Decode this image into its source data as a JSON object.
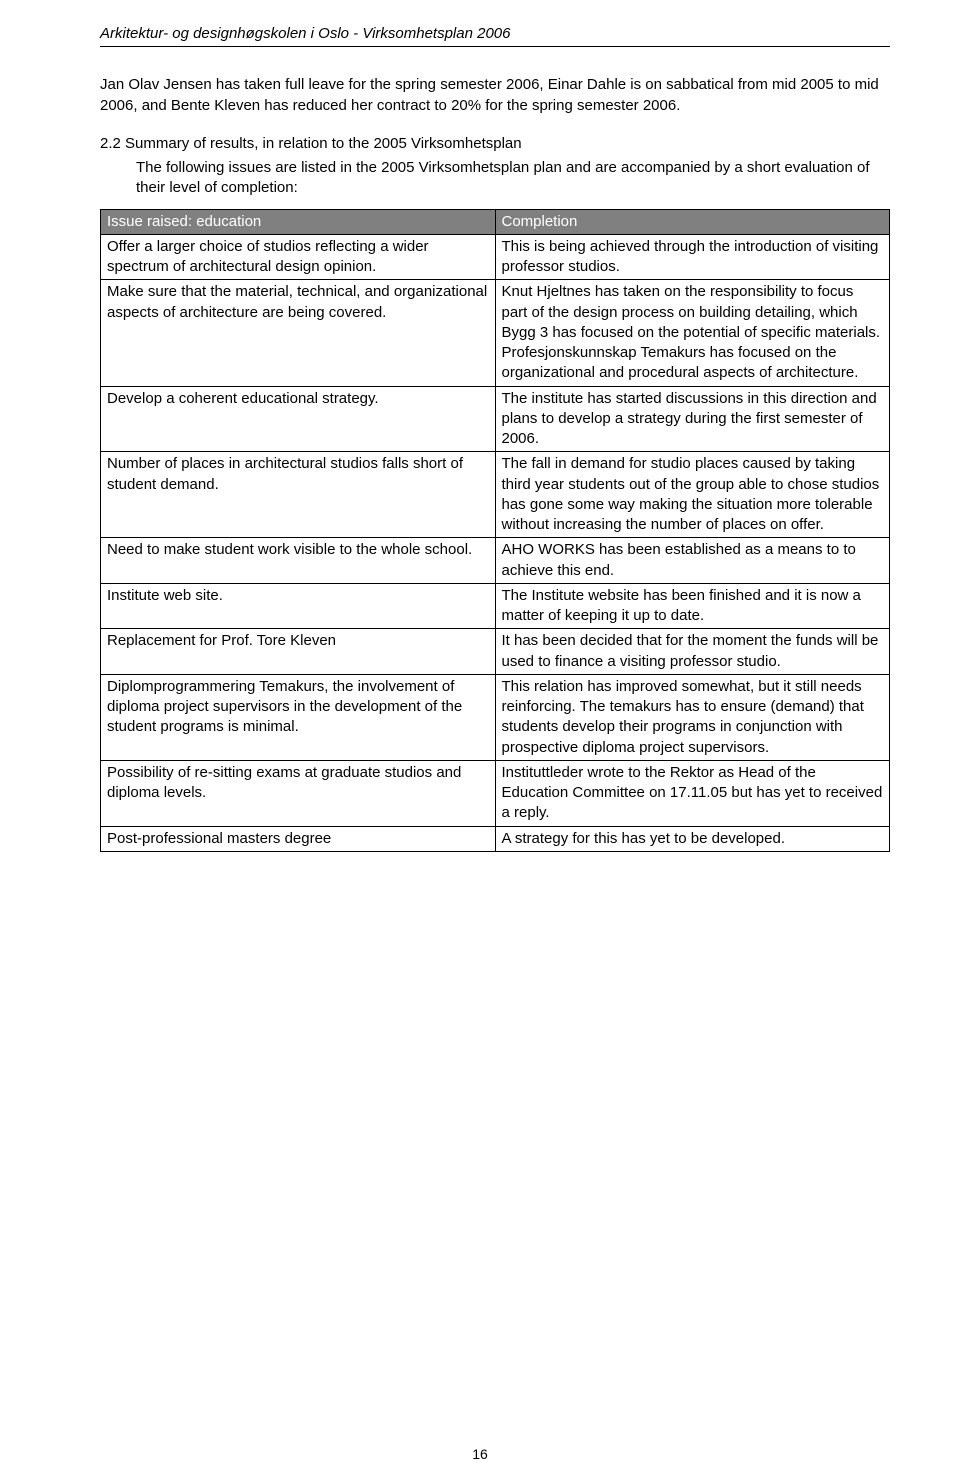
{
  "header": "Arkitektur- og designhøgskolen i Oslo - Virksomhetsplan 2006",
  "intro": "Jan Olav Jensen has taken full leave for the spring semester 2006, Einar Dahle is on sabbatical from mid 2005 to mid 2006, and Bente Kleven has reduced her contract to 20% for the spring semester 2006.",
  "section": {
    "title": "2.2 Summary of results, in relation to the 2005 Virksomhetsplan",
    "body": "The following issues are listed in the 2005 Virksomhetsplan plan and are accompanied by a short evaluation of their level of completion:"
  },
  "table": {
    "head_left": "Issue raised: education",
    "head_right": "Completion",
    "rows": [
      {
        "l": "Offer a larger choice of studios reflecting a wider spectrum of architectural design opinion.",
        "r": "This is being achieved through the introduction of visiting professor studios."
      },
      {
        "l": "Make sure that the material, technical, and organizational aspects of architecture are being covered.",
        "r": "Knut Hjeltnes has taken on the responsibility to focus part of the design process on building detailing, which Bygg 3 has focused on the potential of specific materials. Profesjonskunnskap Temakurs has focused on the organizational and procedural aspects of architecture."
      },
      {
        "l": "Develop a coherent educational strategy.",
        "r": "The institute has started discussions in this direction and plans to develop a strategy during the first semester of 2006."
      },
      {
        "l": "Number of places in architectural studios falls short of student demand.",
        "r": "The fall in demand for studio places caused by taking third year students out of the group able to chose studios has gone some way making the situation more tolerable without increasing the number of places on offer."
      },
      {
        "l": "Need to make student work visible to the whole school.",
        "r": "AHO WORKS has been established as a means to to achieve this end."
      },
      {
        "l": "Institute web site.",
        "r": "The Institute website has been finished and it is now a matter of keeping it up to date."
      },
      {
        "l": "Replacement for Prof. Tore Kleven",
        "r": "It has been decided that for the moment the funds will be used to finance a visiting professor studio."
      },
      {
        "l": "Diplomprogrammering Temakurs, the involvement of diploma project supervisors in the development of the student programs is minimal.",
        "r": "This relation has improved somewhat, but it still needs reinforcing. The temakurs has to ensure (demand) that students develop their programs in conjunction with prospective diploma project supervisors."
      },
      {
        "l": "Possibility of re-sitting exams at graduate studios and diploma levels.",
        "r": "Instituttleder wrote to the Rektor as Head of the Education Committee on 17.11.05 but has yet to received a reply."
      },
      {
        "l": "Post-professional masters degree",
        "r": "A strategy for this has yet to be developed."
      }
    ]
  },
  "page_number": "16",
  "colors": {
    "header_bg": "#808080",
    "header_fg": "#ffffff",
    "text": "#000000",
    "border": "#000000"
  }
}
